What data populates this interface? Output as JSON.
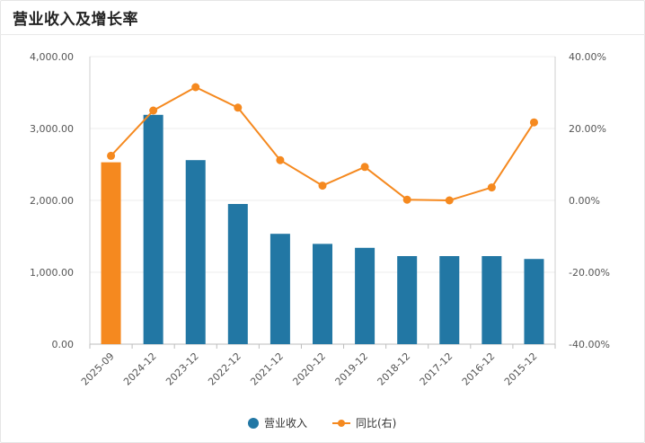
{
  "panel": {
    "title": "营业收入及增长率"
  },
  "chart_data": {
    "type": "bar+line",
    "title": "营业收入及增长率",
    "categories": [
      "2025-09",
      "2024-12",
      "2023-12",
      "2022-12",
      "2021-12",
      "2020-12",
      "2019-12",
      "2018-12",
      "2017-12",
      "2016-12",
      "2015-12"
    ],
    "series": [
      {
        "name": "营业收入",
        "kind": "bar",
        "axis": "left",
        "values": [
          2530,
          3190,
          2560,
          1950,
          1535,
          1395,
          1340,
          1225,
          1225,
          1225,
          1185
        ],
        "colors": [
          "#f5891f",
          "#2277a4",
          "#2277a4",
          "#2277a4",
          "#2277a4",
          "#2277a4",
          "#2277a4",
          "#2277a4",
          "#2277a4",
          "#2277a4",
          "#2277a4"
        ]
      },
      {
        "name": "同比(右)",
        "kind": "line",
        "axis": "right",
        "values": [
          12.4,
          25.0,
          31.5,
          25.8,
          11.2,
          4.1,
          9.3,
          0.2,
          0.0,
          3.6,
          21.7
        ],
        "color": "#f5891f"
      }
    ],
    "left_axis": {
      "min": 0,
      "max": 4000,
      "ticks": [
        "0.00",
        "1,000.00",
        "2,000.00",
        "3,000.00",
        "4,000.00"
      ],
      "tick_values": [
        0,
        1000,
        2000,
        3000,
        4000
      ]
    },
    "right_axis": {
      "min": -40,
      "max": 40,
      "ticks": [
        "-40.00%",
        "-20.00%",
        "0.00%",
        "20.00%",
        "40.00%"
      ],
      "tick_values": [
        -40,
        -20,
        0,
        20,
        40
      ]
    },
    "grid": true,
    "legend": {
      "position": "bottom",
      "items": [
        "营业收入",
        "同比(右)"
      ],
      "bar_color": "#2277a4",
      "line_color": "#f5891f"
    }
  }
}
